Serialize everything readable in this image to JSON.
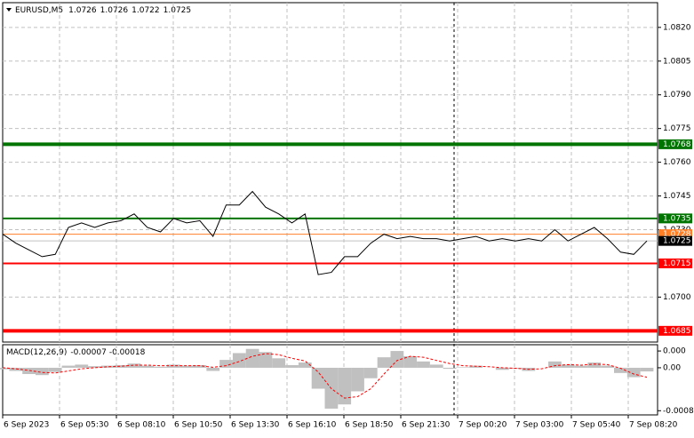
{
  "chart_data": {
    "type": "line",
    "title": "EURUSD,M5",
    "ohlc": [
      1.0726,
      1.0726,
      1.0722,
      1.0725
    ],
    "color": "#000000",
    "values": [
      1.0728,
      1.0724,
      1.0721,
      1.0718,
      1.0719,
      1.0731,
      1.0733,
      1.0731,
      1.0733,
      1.0734,
      1.0737,
      1.0731,
      1.0729,
      1.0735,
      1.0733,
      1.0734,
      1.0727,
      1.0741,
      1.0741,
      1.0747,
      1.074,
      1.0737,
      1.0733,
      1.0737,
      1.071,
      1.0711,
      1.0718,
      1.0718,
      1.0724,
      1.0728,
      1.0726,
      1.0727,
      1.0726,
      1.0726,
      1.0725,
      1.0726,
      1.0727,
      1.0725,
      1.0726,
      1.0725,
      1.0726,
      1.0725,
      1.073,
      1.0725,
      1.0728,
      1.0731,
      1.0726,
      1.072,
      1.0719,
      1.0725
    ],
    "ylim": [
      1.068,
      1.0831
    ],
    "yticks": [
      {
        "value": 1.082,
        "label": "1.0820"
      },
      1.0805,
      {
        "value": 1.079,
        "label": "1.0790"
      },
      1.0775,
      {
        "value": 1.076,
        "label": "1.0760"
      },
      1.0745,
      {
        "value": 1.073,
        "label": "1.0730"
      },
      {
        "value": 1.07,
        "label": "1.0700"
      }
    ],
    "grid": true,
    "x_labels": [
      "6 Sep 2023",
      "6 Sep 05:30",
      "6 Sep 08:10",
      "6 Sep 10:50",
      "6 Sep 13:30",
      "6 Sep 16:10",
      "6 Sep 18:50",
      "6 Sep 21:30",
      "7 Sep 00:20",
      "7 Sep 03:00",
      "7 Sep 05:40",
      "7 Sep 08:20"
    ],
    "levels": [
      {
        "value": 1.0768,
        "color": "#007400",
        "width": 4
      },
      {
        "value": 1.0735,
        "color": "#007400",
        "width": 2
      },
      {
        "value": 1.0728,
        "color": "#ff7f27",
        "width": 1
      },
      {
        "value": 1.0715,
        "color": "#ff0000",
        "width": 2
      },
      {
        "value": 1.0685,
        "color": "#ff0000",
        "width": 4
      }
    ],
    "current_price": 1.0725,
    "macd": {
      "label": "MACD(12,26,9)",
      "macd_value": -7e-05,
      "signal_value": -0.00018,
      "histogram_color": "#c0c0c0",
      "signal_color": "#ff0000",
      "histogram": [
        -3e-05,
        -6e-05,
        -0.00012,
        -0.00014,
        -8e-05,
        4e-05,
        6e-05,
        3e-05,
        4e-05,
        5e-05,
        8e-05,
        4e-05,
        2e-05,
        6e-05,
        4e-05,
        5e-05,
        -6e-05,
        0.00015,
        0.00028,
        0.00036,
        0.0003,
        0.00018,
        5e-05,
        0.0001,
        -0.0004,
        -0.00078,
        -0.0007,
        -0.00045,
        -0.0002,
        0.0002,
        0.00032,
        0.00022,
        0.00012,
        6e-05,
        -2e-05,
        1e-05,
        4e-05,
        0,
        -4e-05,
        -2e-05,
        -6e-05,
        0,
        0.00012,
        6e-05,
        4e-05,
        0.0001,
        4e-05,
        -0.0001,
        -0.00018,
        -7e-05
      ],
      "signal": [
        0,
        -2e-05,
        -5e-05,
        -9e-05,
        -0.0001,
        -6e-05,
        -2e-05,
        0,
        2e-05,
        3e-05,
        5e-05,
        5e-05,
        4e-05,
        4e-05,
        4e-05,
        4e-05,
        1e-05,
        4e-05,
        0.00012,
        0.00022,
        0.00027,
        0.00025,
        0.00018,
        0.00013,
        -8e-05,
        -0.0004,
        -0.00058,
        -0.00055,
        -0.0004,
        -0.00012,
        0.00014,
        0.00022,
        0.0002,
        0.00014,
        8e-05,
        4e-05,
        3e-05,
        2e-05,
        0,
        -1e-05,
        -3e-05,
        -2e-05,
        4e-05,
        6e-05,
        5e-05,
        7e-05,
        6e-05,
        -1e-05,
        -0.00012,
        -0.00018
      ],
      "ylim": [
        -0.0009,
        0.00044
      ],
      "yticks": [
        {
          "value": 0.00032,
          "label": "0.000"
        },
        {
          "value": 0,
          "label": "0.00"
        },
        -0.00082
      ]
    }
  }
}
